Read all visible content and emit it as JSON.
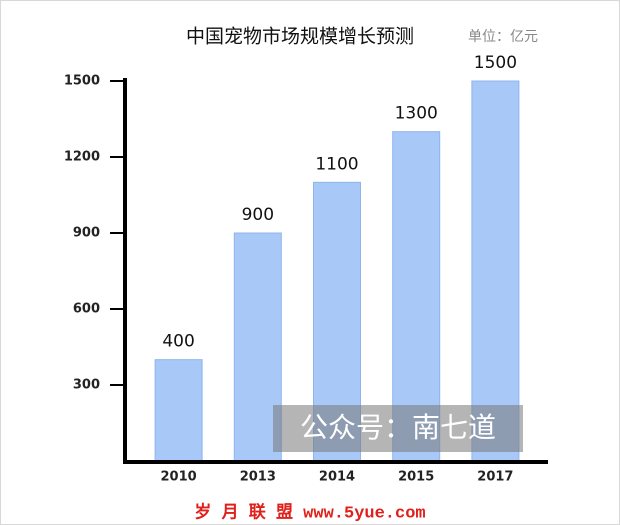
{
  "chart_data": {
    "type": "bar",
    "title": "中国宠物市场规模增长预测",
    "subtitle": "单位：亿元",
    "categories": [
      "2010",
      "2013",
      "2014",
      "2015",
      "2017"
    ],
    "values": [
      400,
      900,
      1100,
      1300,
      1500
    ],
    "color": "#a8c8f8",
    "ylim": [
      0,
      1500
    ],
    "yticks": [
      300,
      600,
      900,
      1200,
      1500
    ],
    "watermark": "公众号：南七道",
    "footer": "岁 月 联 盟  www.5yue.com"
  }
}
